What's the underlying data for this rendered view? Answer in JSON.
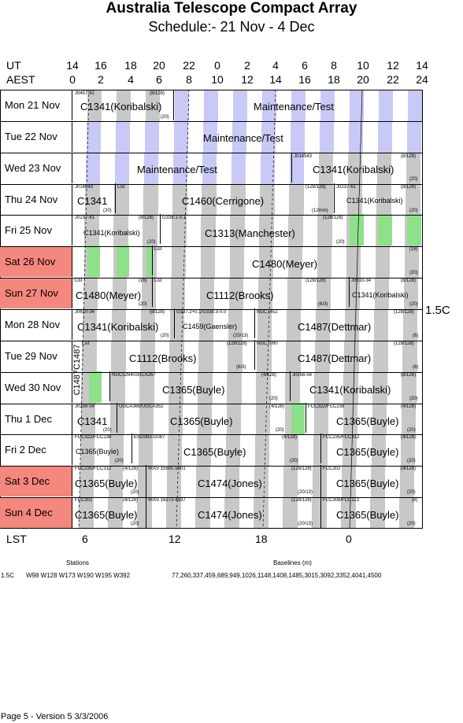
{
  "title": "Australia Telescope Compact Array",
  "subtitle": "Schedule:- 21 Nov - 4  Dec",
  "header": {
    "ut_label": "UT",
    "aest_label": "AEST",
    "ut": [
      "14",
      "16",
      "18",
      "20",
      "22",
      "0",
      "2",
      "4",
      "6",
      "8",
      "10",
      "12",
      "14"
    ],
    "aest": [
      "0",
      "2",
      "4",
      "6",
      "8",
      "10",
      "12",
      "14",
      "16",
      "18",
      "20",
      "22",
      "24"
    ]
  },
  "days": [
    {
      "label": "Mon  21 Nov",
      "weekend": false
    },
    {
      "label": "Tue   22 Nov",
      "weekend": false
    },
    {
      "label": "Wed  23 Nov",
      "weekend": false
    },
    {
      "label": "Thu   24 Nov",
      "weekend": false
    },
    {
      "label": "Fri    25 Nov",
      "weekend": false
    },
    {
      "label": "Sat   26 Nov",
      "weekend": true
    },
    {
      "label": "Sun  27 Nov",
      "weekend": true
    },
    {
      "label": "Mon  28 Nov",
      "weekend": false
    },
    {
      "label": "Tue   29 Nov",
      "weekend": false
    },
    {
      "label": "Wed  30 Nov",
      "weekend": false
    },
    {
      "label": "Thu    1  Dec",
      "weekend": false
    },
    {
      "label": "Fri     2  Dec",
      "weekend": false
    },
    {
      "label": "Sat    3  Dec",
      "weekend": true
    },
    {
      "label": "Sun    4  Dec",
      "weekend": true
    }
  ],
  "blocks": {
    "r0": {
      "a_src": "J0457-42",
      "a_pri": "(8/128)",
      "a_main": "C1341(Koribalski)",
      "a_note": "(20)",
      "b_main": "Maintenance/Test"
    },
    "r1": {
      "main": "Maintenance/Test"
    },
    "r2": {
      "a_main": "Maintenance/Test",
      "b_src": "J014543",
      "b_pri": "(8/128)",
      "b_main": "C1341(Koribalski)",
      "b_note": "(20)"
    },
    "r3": {
      "a_src": "J014543",
      "a_main": "C1341",
      "a_note": "(20)",
      "b_src": "List",
      "b_main": "C1460(Cerrigone)",
      "b_pri": "(128/128)",
      "b_note": "(12mm)",
      "c_src": "J0237-61",
      "c_pri": "(8/128)",
      "c_main": "C1341(Koribalski)",
      "c_note": "(20)"
    },
    "r4": {
      "a_src": "J0237-61",
      "a_pri": "(8/128)",
      "a_main": "C1341(Koribalski)",
      "a_note": "(20)",
      "b_src": "G336.1-0.1",
      "b_pri": "(128/128)",
      "b_main": "C1313(Manchester)",
      "b_note": "(20)"
    },
    "r5": {
      "a_src": "List",
      "a_pri": "(16)",
      "a_main": "C1480(Meyer)",
      "a_note": "(20)"
    },
    "r6": {
      "a_src": "List",
      "a_pri": "(16)",
      "a_main": "C1480(Meyer)",
      "a_note": "(20)",
      "b_src": "List",
      "b_pri": "(128/128)",
      "b_main": "C1112(Brooks)",
      "b_note": "(6/3)",
      "c_src": "J0610-34",
      "c_pri": "(8/128)",
      "c_main": "C1341(Koribalski)",
      "c_note": "(20)"
    },
    "r7": {
      "a_src": "J0610-34",
      "a_pri": "(8/128)",
      "a_main": "C1341(Koribalski)",
      "a_note": "(20)",
      "b_src": "G337.2+0.1/G338.3-0.0",
      "b_main": "C1459(Gaensler)",
      "b_note": "(20/13)",
      "c_src": "NGC7452",
      "c_pri": "(128/128)",
      "c_main": "C1487(Dettmar)",
      "c_note": "(6)"
    },
    "r8": {
      "a_src": "List",
      "a_pri": "(128/128)",
      "a_main": "C1112(Brooks)",
      "a_note": "(6/3)",
      "b_src": "NGC7090",
      "b_pri": "(128/128)",
      "b_main": "C1487(Dettmar)",
      "b_note": "(6)"
    },
    "r9": {
      "a_src": "NGC5264/UGCA267",
      "a_pri": "(4/128)",
      "a_main": "C1365(Buyle)",
      "a_note": "(20)",
      "b_src": "J0256-54",
      "b_pri": "(8/128)",
      "b_main": "C1341(Koribalski)",
      "b_note": "(20)"
    },
    "r10": {
      "a_src": "J0256-54",
      "a_main": "C1341",
      "a_note": "(20)",
      "b_src": "UGCA366/UGCA352",
      "b_pri": "(4/128)",
      "b_main": "C1365(Buyle)",
      "b_note": "(20)",
      "c_src": "FCC322/FCC238",
      "c_pri": "(4/128)",
      "c_main": "C1365(Buyle)",
      "c_note": "(20)"
    },
    "r11": {
      "a_src": "FCC322/FCC238",
      "a_main": "C1365(Buyle)",
      "a_note": "(20)",
      "b_src": "ESO383-G087",
      "b_pri": "(4/128)",
      "b_main": "C1365(Buyle)",
      "b_note": "(20)",
      "c_src": "FCC235/FCC312",
      "c_pri": "(4/128)",
      "c_main": "C1365(Buyle)",
      "c_note": "(20)"
    },
    "r12": {
      "a_src": "FCC235/FCC312",
      "a_pri": "(4/128)",
      "a_main": "C1365(Buyle)",
      "a_note": "(20)",
      "b_src": "IRAS 15591-5301",
      "b_pri": "(128/128)",
      "b_main": "C1474(Jones)",
      "b_note": "(20/13)",
      "c_src": "FCC302",
      "c_pri": "(4/128)",
      "c_main": "C1365(Buyle)",
      "c_note": "(20)"
    },
    "r13": {
      "a_src": "FCC302",
      "a_pri": "(4/128)",
      "a_main": "C1365(Buyle)",
      "a_note": "(20)",
      "b_src": "IRAS 16272-4837",
      "b_pri": "(128/128)",
      "b_main": "C1474(Jones)",
      "b_note": "(20/13)",
      "c_src": "FCC308/FCC113",
      "c_pri": "(8)",
      "c_main": "C1365(Buyle)",
      "c_note": "(20)"
    }
  },
  "vertical_label": "C1487C1487",
  "config_label": "1.5C",
  "lst": {
    "label": "LST",
    "ticks": [
      "6",
      "12",
      "18",
      "0"
    ]
  },
  "stations_header": "Stations",
  "baselines_header": "Baselines (m)",
  "config_row": {
    "name": "1.5C",
    "stations": "W98 W128 W173 W190 W195 W392",
    "baselines": "77,260,337,459,689,949,1026,1148,1408,1485,3015,3092,3352,4041,4500"
  },
  "footer": "Page 5 - Version 5  3/3/2006"
}
